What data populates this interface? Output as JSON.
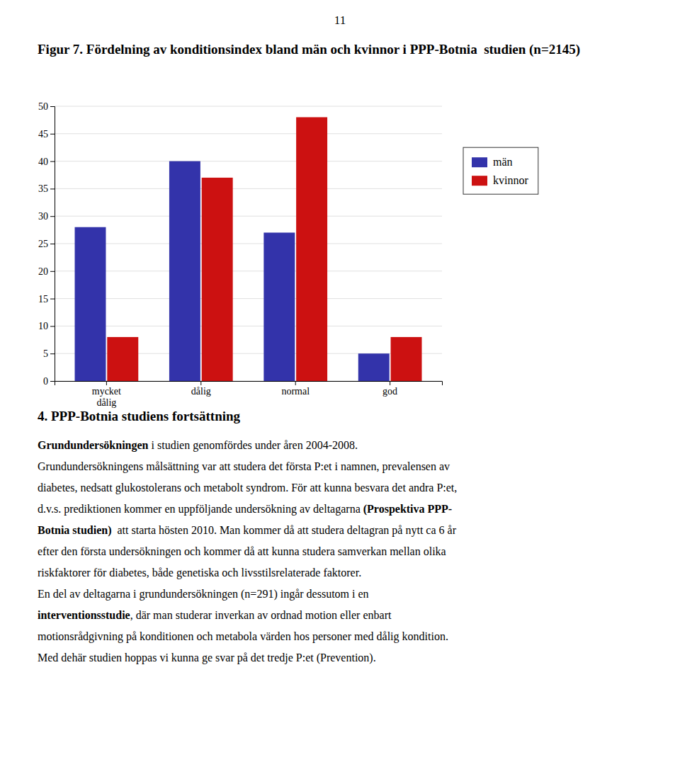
{
  "chart_data": {
    "type": "bar",
    "title": "Figur 7. Fördelning av konditionsindex bland män och kvinnor i PPP-Botnia  studien (n=2145)",
    "categories": [
      "mycket\ndålig",
      "dålig",
      "normal",
      "god"
    ],
    "series": [
      {
        "name": "män",
        "color": "#3333AA",
        "values": [
          28,
          40,
          27,
          5
        ]
      },
      {
        "name": "kvinnor",
        "color": "#CC1111",
        "values": [
          8,
          37,
          48,
          8
        ]
      }
    ],
    "ylim": [
      0,
      50
    ],
    "yticks": [
      0,
      5,
      10,
      15,
      20,
      25,
      30,
      35,
      40,
      45,
      50
    ],
    "grid": true,
    "legend": "right"
  },
  "page": {
    "page_number": "11",
    "section_heading": "4. PPP-Botnia studiens fortsättning",
    "body_lines": [
      [
        {
          "text": "Grundundersökningen",
          "bold": true
        },
        {
          "text": " i studien genomfördes under åren 2004-2008.",
          "bold": false
        }
      ],
      [
        {
          "text": "Grundundersökningens målsättning var att studera det första P:et i namnen, prevalensen av",
          "bold": false
        }
      ],
      [
        {
          "text": "diabetes, nedsatt glukostolerans och metabolt syndrom. För att kunna besvara det andra P:et,",
          "bold": false
        }
      ],
      [
        {
          "text": "d.v.s. prediktionen kommer en uppföljande undersökning av deltagarna ",
          "bold": false
        },
        {
          "text": "(Prospektiva PPP-",
          "bold": true
        }
      ],
      [
        {
          "text": "Botnia studien)",
          "bold": true
        },
        {
          "text": "  att starta hösten 2010. Man kommer då att studera deltagran på nytt ca 6 år",
          "bold": false
        }
      ],
      [
        {
          "text": "efter den första undersökningen och kommer då att kunna studera samverkan mellan olika",
          "bold": false
        }
      ],
      [
        {
          "text": "riskfaktorer för diabetes, både genetiska och livsstilsrelaterade faktorer.",
          "bold": false
        }
      ],
      [
        {
          "text": "En del av deltagarna i grundundersökningen (n=291) ingår dessutom i en",
          "bold": false
        }
      ],
      [
        {
          "text": "interventionsstudie",
          "bold": true
        },
        {
          "text": ", där man studerar inverkan av ordnad motion eller enbart",
          "bold": false
        }
      ],
      [
        {
          "text": "motionsrådgivning på konditionen och metabola värden hos personer med dålig kondition.",
          "bold": false
        }
      ],
      [
        {
          "text": "Med dehär studien hoppas vi kunna ge svar på det tredje P:et (Prevention).",
          "bold": false
        }
      ]
    ]
  }
}
